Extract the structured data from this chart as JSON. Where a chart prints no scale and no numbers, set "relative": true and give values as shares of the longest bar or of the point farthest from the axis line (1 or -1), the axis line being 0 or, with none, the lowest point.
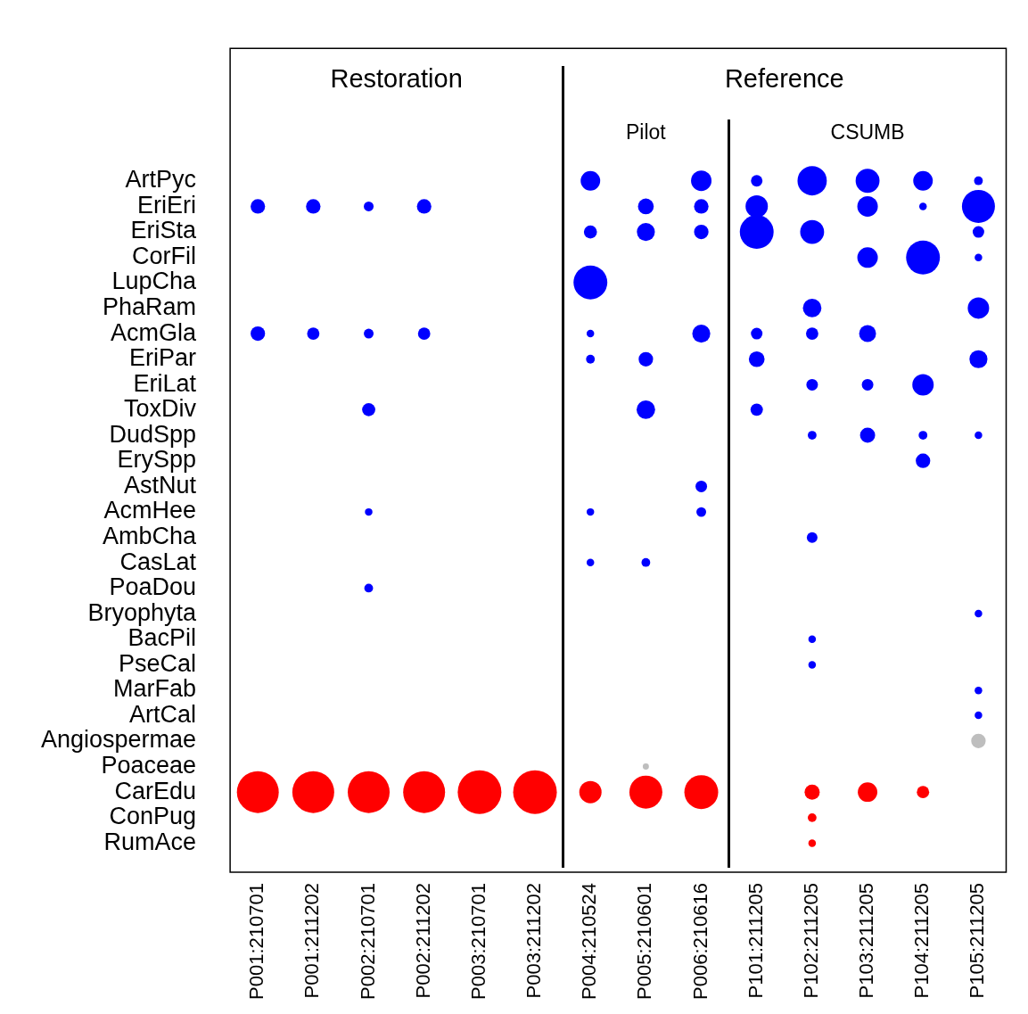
{
  "chart_data": {
    "type": "bubble",
    "relative": true,
    "categories": [
      "P001:210701",
      "P001:211202",
      "P002:210701",
      "P002:211202",
      "P003:210701",
      "P003:211202",
      "P004:210524",
      "P005:210601",
      "P006:210616",
      "P101:211205",
      "P102:211205",
      "P103:211205",
      "P104:211205",
      "P105:211205"
    ],
    "y_categories": [
      "ArtPyc",
      "EriEri",
      "EriSta",
      "CorFil",
      "LupCha",
      "PhaRam",
      "AcmGla",
      "EriPar",
      "EriLat",
      "ToxDiv",
      "DudSpp",
      "ErySpp",
      "AstNut",
      "AcmHee",
      "AmbCha",
      "CasLat",
      "PoaDou",
      "Bryophyta",
      "BacPil",
      "PseCal",
      "MarFab",
      "ArtCal",
      "Angiospermae",
      "Poaceae",
      "CarEdu",
      "ConPug",
      "RumAce"
    ],
    "series": [
      {
        "color": "#0000ff",
        "x": [
          "P004:210524",
          "P006:210616",
          "P101:211205",
          "P102:211205",
          "P103:211205",
          "P104:211205",
          "P105:211205",
          "P001:210701",
          "P001:211202",
          "P002:210701",
          "P002:211202",
          "P005:210601",
          "P006:210616",
          "P101:211205",
          "P103:211205",
          "P104:211205",
          "P105:211205",
          "P004:210524",
          "P005:210601",
          "P006:210616",
          "P101:211205",
          "P102:211205",
          "P105:211205",
          "P103:211205",
          "P104:211205",
          "P105:211205",
          "P004:210524",
          "P102:211205",
          "P105:211205",
          "P001:210701",
          "P001:211202",
          "P002:210701",
          "P002:211202",
          "P004:210524",
          "P006:210616",
          "P101:211205",
          "P102:211205",
          "P103:211205",
          "P004:210524",
          "P005:210601",
          "P101:211205",
          "P105:211205",
          "P102:211205",
          "P103:211205",
          "P104:211205",
          "P002:210701",
          "P005:210601",
          "P101:211205",
          "P102:211205",
          "P103:211205",
          "P104:211205",
          "P105:211205",
          "P104:211205",
          "P006:210616",
          "P002:210701",
          "P004:210524",
          "P006:210616",
          "P102:211205",
          "P004:210524",
          "P005:210601",
          "P002:210701",
          "P105:211205",
          "P102:211205",
          "P102:211205",
          "P105:211205",
          "P105:211205"
        ],
        "values": [
          1,
          1,
          1,
          1,
          1,
          1,
          1,
          0.963,
          0.963,
          0.963,
          0.963,
          0.963,
          0.963,
          0.963,
          0.963,
          0.963,
          0.963,
          0.926,
          0.926,
          0.926,
          0.926,
          0.926,
          0.926,
          0.889,
          0.889,
          0.889,
          0.853,
          0.816,
          0.816,
          0.779,
          0.779,
          0.779,
          0.779,
          0.779,
          0.779,
          0.779,
          0.779,
          0.779,
          0.742,
          0.742,
          0.742,
          0.742,
          0.705,
          0.705,
          0.705,
          0.669,
          0.669,
          0.669,
          0.632,
          0.632,
          0.632,
          0.632,
          0.595,
          0.558,
          0.521,
          0.521,
          0.521,
          0.484,
          0.448,
          0.448,
          0.411,
          0.374,
          0.337,
          0.3,
          0.263,
          0.227
        ],
        "sizes": [
          0.2,
          0.22,
          0.07,
          0.45,
          0.3,
          0.2,
          0.04,
          0.11,
          0.11,
          0.05,
          0.11,
          0.13,
          0.11,
          0.26,
          0.22,
          0.03,
          0.57,
          0.09,
          0.17,
          0.11,
          0.6,
          0.3,
          0.07,
          0.22,
          0.6,
          0.03,
          0.6,
          0.18,
          0.24,
          0.11,
          0.08,
          0.05,
          0.08,
          0.03,
          0.17,
          0.07,
          0.08,
          0.15,
          0.04,
          0.11,
          0.13,
          0.17,
          0.07,
          0.07,
          0.24,
          0.09,
          0.18,
          0.08,
          0.04,
          0.12,
          0.04,
          0.03,
          0.11,
          0.07,
          0.03,
          0.03,
          0.05,
          0.06,
          0.03,
          0.04,
          0.04,
          0.03,
          0.03,
          0.03,
          0.03,
          0.03
        ]
      },
      {
        "color": "#bebebe",
        "x": [
          "P105:211205",
          "P005:210601"
        ],
        "values": [
          0.19,
          0.153
        ],
        "sizes": [
          0.11,
          0.02
        ]
      },
      {
        "color": "#ff0000",
        "x": [
          "P001:210701",
          "P001:211202",
          "P002:210701",
          "P002:211202",
          "P003:210701",
          "P003:211202",
          "P004:210524",
          "P005:210601",
          "P006:210616",
          "P102:211205",
          "P103:211205",
          "P104:211205",
          "P102:211205",
          "P102:211205"
        ],
        "values": [
          0.116,
          0.116,
          0.116,
          0.116,
          0.116,
          0.116,
          0.116,
          0.116,
          0.116,
          0.116,
          0.116,
          0.116,
          0.079,
          0.042
        ],
        "sizes": [
          0.92,
          0.92,
          0.92,
          0.92,
          1,
          1,
          0.26,
          0.57,
          0.6,
          0.12,
          0.2,
          0.08,
          0.04,
          0.03
        ]
      }
    ],
    "annotations": [
      "Restoration",
      "Reference",
      "Pilot",
      "CSUMB"
    ],
    "grid": false,
    "legend": false
  }
}
